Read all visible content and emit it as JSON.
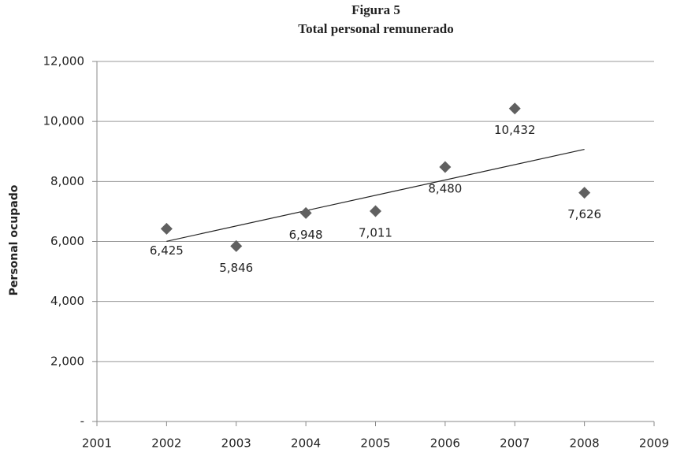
{
  "chart_data": {
    "type": "scatter",
    "title": "Figura 5",
    "subtitle": "Total personal remunerado",
    "y_label": "Personal ocupado",
    "x": [
      2002,
      2003,
      2004,
      2005,
      2006,
      2007,
      2008
    ],
    "values": [
      6425,
      5846,
      6948,
      7011,
      8480,
      10432,
      7626
    ],
    "value_labels": [
      "6,425",
      "5,846",
      "6,948",
      "7,011",
      "8,480",
      "10,432",
      "7,626"
    ],
    "color": "#606060",
    "trendline": "linear",
    "xlim": [
      2001,
      2009
    ],
    "xticks": [
      2001,
      2002,
      2003,
      2004,
      2005,
      2006,
      2007,
      2008,
      2009
    ],
    "ylim": [
      0,
      12000
    ],
    "yticks": [
      {
        "value": 0,
        "label": "-"
      },
      {
        "value": 2000,
        "label": "2,000"
      },
      {
        "value": 4000,
        "label": "4,000"
      },
      {
        "value": 6000,
        "label": "6,000"
      },
      {
        "value": 8000,
        "label": "8,000"
      },
      {
        "value": 10000,
        "label": "10,000"
      },
      {
        "value": 12000,
        "label": "12,000"
      }
    ],
    "grid": true
  }
}
